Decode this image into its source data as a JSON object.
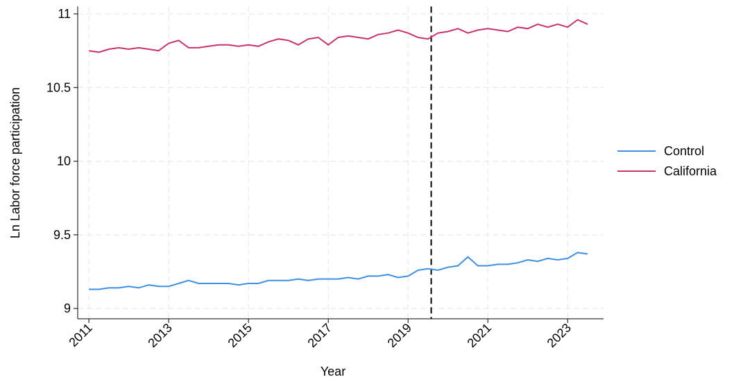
{
  "chart_data": {
    "type": "line",
    "xlabel": "Year",
    "ylabel": "Ln Labor force participation",
    "x": [
      2011,
      2011.25,
      2011.5,
      2011.75,
      2012,
      2012.25,
      2012.5,
      2012.75,
      2013,
      2013.25,
      2013.5,
      2013.75,
      2014,
      2014.25,
      2014.5,
      2014.75,
      2015,
      2015.25,
      2015.5,
      2015.75,
      2016,
      2016.25,
      2016.5,
      2016.75,
      2017,
      2017.25,
      2017.5,
      2017.75,
      2018,
      2018.25,
      2018.5,
      2018.75,
      2019,
      2019.25,
      2019.5,
      2019.75,
      2020,
      2020.25,
      2020.5,
      2020.75,
      2021,
      2021.25,
      2021.5,
      2021.75,
      2022,
      2022.25,
      2022.5,
      2022.75,
      2023,
      2023.25,
      2023.5
    ],
    "series": [
      {
        "name": "Control",
        "color": "#3d8fe0",
        "values": [
          9.13,
          9.13,
          9.14,
          9.14,
          9.15,
          9.14,
          9.16,
          9.15,
          9.15,
          9.17,
          9.19,
          9.17,
          9.17,
          9.17,
          9.17,
          9.16,
          9.17,
          9.17,
          9.19,
          9.19,
          9.19,
          9.2,
          9.19,
          9.2,
          9.2,
          9.2,
          9.21,
          9.2,
          9.22,
          9.22,
          9.23,
          9.21,
          9.22,
          9.26,
          9.27,
          9.26,
          9.28,
          9.29,
          9.35,
          9.29,
          9.29,
          9.3,
          9.3,
          9.31,
          9.33,
          9.32,
          9.34,
          9.33,
          9.34,
          9.38,
          9.37
        ]
      },
      {
        "name": "California",
        "color": "#c8316b",
        "values": [
          10.75,
          10.74,
          10.76,
          10.77,
          10.76,
          10.77,
          10.76,
          10.75,
          10.8,
          10.82,
          10.77,
          10.77,
          10.78,
          10.79,
          10.79,
          10.78,
          10.79,
          10.78,
          10.81,
          10.83,
          10.82,
          10.79,
          10.83,
          10.84,
          10.79,
          10.84,
          10.85,
          10.84,
          10.83,
          10.86,
          10.87,
          10.89,
          10.87,
          10.84,
          10.83,
          10.87,
          10.88,
          10.9,
          10.87,
          10.89,
          10.9,
          10.89,
          10.88,
          10.91,
          10.9,
          10.93,
          10.91,
          10.93,
          10.91,
          10.96,
          10.93
        ]
      }
    ],
    "reference_x": 2019.58,
    "xlim": [
      2010.72,
      2023.9
    ],
    "xticks": [
      2011,
      2013,
      2015,
      2017,
      2019,
      2021,
      2023
    ],
    "ylim": [
      8.93,
      11.05
    ],
    "yticks": [
      9,
      9.5,
      10,
      10.5,
      11
    ],
    "grid": true,
    "legend": "right"
  }
}
